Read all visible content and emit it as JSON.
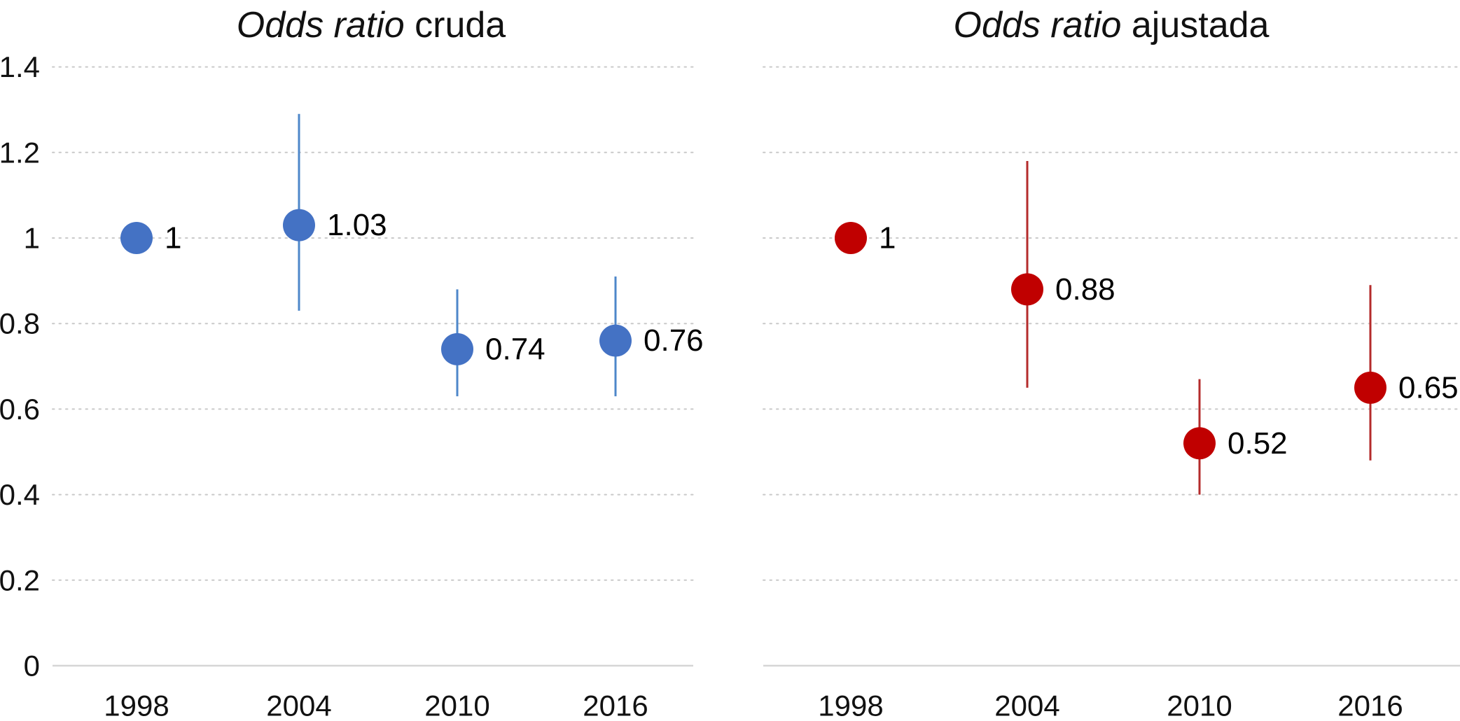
{
  "chart_data": [
    {
      "type": "scatter",
      "title_italic": "Odds ratio",
      "title_rest": " cruda",
      "categories": [
        "1998",
        "2004",
        "2010",
        "2016"
      ],
      "series": [
        {
          "name": "Odds ratio cruda",
          "marker_color": "#4472C4",
          "errorbar_color": "#4E87CA",
          "values": [
            1,
            1.03,
            0.74,
            0.76
          ],
          "value_labels": [
            "1",
            "1.03",
            "0.74",
            "0.76"
          ],
          "ci_low": [
            null,
            0.83,
            0.63,
            0.63
          ],
          "ci_high": [
            null,
            1.29,
            0.88,
            0.91
          ]
        }
      ],
      "ylim": [
        0,
        1.4
      ],
      "ytick_values": [
        0,
        0.2,
        0.4,
        0.6,
        0.8,
        1,
        1.2,
        1.4
      ],
      "ytick_labels": [
        "0",
        "0.2",
        "0.4",
        "0.6",
        "0.8",
        "1",
        "1.2",
        "1.4"
      ],
      "show_ytick_labels": true,
      "grid": "dotted-horizontal",
      "legend": "none"
    },
    {
      "type": "scatter",
      "title_italic": "Odds ratio",
      "title_rest": " ajustada",
      "categories": [
        "1998",
        "2004",
        "2010",
        "2016"
      ],
      "series": [
        {
          "name": "Odds ratio ajustada",
          "marker_color": "#C00000",
          "errorbar_color": "#B42B2B",
          "values": [
            1,
            0.88,
            0.52,
            0.65
          ],
          "value_labels": [
            "1",
            "0.88",
            "0.52",
            "0.65"
          ],
          "ci_low": [
            null,
            0.65,
            0.4,
            0.48
          ],
          "ci_high": [
            null,
            1.18,
            0.67,
            0.89
          ]
        }
      ],
      "ylim": [
        0,
        1.4
      ],
      "ytick_values": [
        0,
        0.2,
        0.4,
        0.6,
        0.8,
        1,
        1.2,
        1.4
      ],
      "ytick_labels": [
        "0",
        "0.2",
        "0.4",
        "0.6",
        "0.8",
        "1",
        "1.2",
        "1.4"
      ],
      "show_ytick_labels": false,
      "grid": "dotted-horizontal",
      "legend": "none"
    }
  ],
  "colors": {
    "crude_series": "#4472C4",
    "adjusted_series": "#C00000",
    "gridline": "#c9c9c9",
    "axis_line": "#d6d6d6",
    "text": "#111111"
  }
}
